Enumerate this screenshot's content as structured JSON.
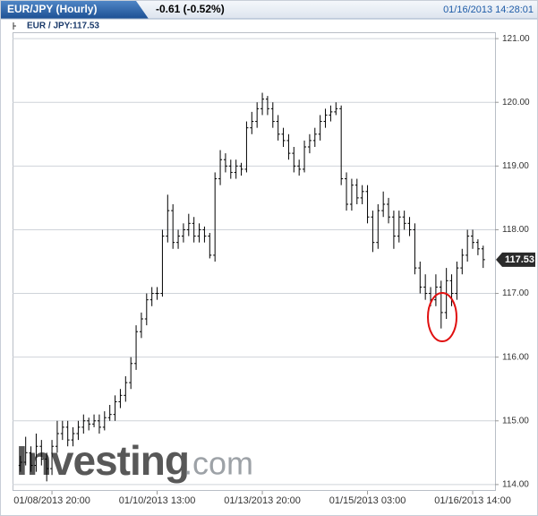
{
  "chart_data": {
    "type": "ohlc",
    "title": "EUR/JPY (Hourly)",
    "change": "-0.61 (-0.52%)",
    "timestamp": "01/16/2013 14:28:01",
    "legend_label": "EUR / JPY:117.53",
    "last_price_label": "117.53",
    "watermark": "Investing",
    "watermark_suffix": ".com",
    "color": "#000000",
    "grid": true,
    "x": [
      0,
      1,
      2,
      3,
      4,
      5,
      6,
      7,
      8,
      9,
      10,
      11,
      12,
      13,
      14,
      15,
      16,
      17,
      18,
      19,
      20,
      21,
      22,
      23,
      24,
      25,
      26,
      27,
      28,
      29,
      30,
      31,
      32,
      33,
      34,
      35,
      36,
      37,
      38,
      39,
      40,
      41,
      42,
      43,
      44,
      45,
      46,
      47,
      48,
      49,
      50,
      51,
      52,
      53,
      54,
      55,
      56,
      57,
      58,
      59,
      60,
      61,
      62,
      63,
      64,
      65,
      66,
      67,
      68,
      69,
      70,
      71,
      72,
      73,
      74,
      75,
      76,
      77,
      78,
      79,
      80,
      81,
      82,
      83,
      84,
      85,
      86,
      87,
      88
    ],
    "open": [
      114.3,
      114.35,
      114.5,
      114.3,
      114.6,
      114.4,
      114.25,
      114.6,
      114.8,
      114.9,
      114.7,
      114.8,
      114.9,
      115.0,
      114.95,
      115.0,
      114.9,
      115.05,
      115.1,
      115.3,
      115.4,
      115.6,
      115.9,
      116.4,
      116.6,
      116.9,
      117.0,
      117.0,
      117.9,
      118.3,
      117.8,
      117.9,
      118.0,
      118.1,
      117.9,
      118.0,
      117.9,
      117.6,
      118.8,
      119.1,
      119.0,
      118.9,
      119.0,
      118.95,
      119.6,
      119.7,
      119.9,
      120.05,
      119.9,
      119.7,
      119.5,
      119.4,
      119.2,
      119.0,
      118.95,
      119.3,
      119.4,
      119.5,
      119.7,
      119.8,
      119.85,
      119.9,
      118.8,
      118.4,
      118.7,
      118.5,
      118.6,
      118.2,
      117.8,
      118.3,
      118.4,
      118.2,
      117.9,
      118.2,
      118.1,
      118.0,
      117.4,
      117.1,
      117.0,
      116.9,
      117.1,
      116.7,
      117.2,
      117.0,
      117.4,
      117.6,
      117.9,
      117.8,
      117.7
    ],
    "high": [
      114.45,
      114.75,
      114.6,
      114.8,
      114.7,
      114.5,
      114.7,
      115.0,
      115.0,
      115.0,
      114.9,
      115.0,
      115.1,
      115.05,
      115.1,
      115.1,
      115.15,
      115.25,
      115.4,
      115.5,
      115.7,
      116.0,
      116.5,
      116.7,
      117.0,
      117.1,
      117.1,
      118.0,
      118.55,
      118.4,
      118.0,
      118.1,
      118.25,
      118.2,
      118.1,
      118.05,
      117.95,
      118.9,
      119.25,
      119.2,
      119.1,
      119.1,
      119.05,
      119.7,
      119.85,
      120.0,
      120.15,
      120.1,
      120.0,
      119.8,
      119.6,
      119.5,
      119.3,
      119.1,
      119.4,
      119.5,
      119.6,
      119.8,
      119.9,
      119.95,
      120.0,
      119.95,
      118.9,
      118.8,
      118.8,
      118.7,
      118.7,
      118.3,
      118.4,
      118.6,
      118.5,
      118.3,
      118.3,
      118.3,
      118.2,
      118.1,
      117.5,
      117.3,
      117.1,
      117.3,
      117.2,
      117.4,
      117.3,
      117.5,
      117.7,
      118.0,
      118.0,
      117.85,
      117.75
    ],
    "low": [
      114.2,
      114.3,
      114.2,
      114.2,
      114.3,
      114.05,
      114.15,
      114.5,
      114.7,
      114.6,
      114.6,
      114.7,
      114.8,
      114.85,
      114.9,
      114.8,
      114.85,
      115.0,
      115.0,
      115.2,
      115.3,
      115.5,
      115.8,
      116.3,
      116.5,
      116.8,
      116.9,
      116.95,
      117.8,
      117.7,
      117.7,
      117.8,
      117.9,
      117.8,
      117.8,
      117.8,
      117.55,
      117.5,
      118.7,
      118.9,
      118.8,
      118.8,
      118.85,
      118.9,
      119.5,
      119.6,
      119.8,
      119.8,
      119.6,
      119.4,
      119.3,
      119.1,
      118.9,
      118.85,
      118.9,
      119.2,
      119.3,
      119.4,
      119.6,
      119.7,
      119.8,
      118.7,
      118.3,
      118.3,
      118.4,
      118.4,
      118.1,
      117.65,
      117.7,
      118.2,
      118.1,
      117.7,
      117.8,
      118.0,
      117.9,
      117.3,
      117.0,
      116.9,
      116.8,
      116.8,
      116.45,
      116.6,
      116.8,
      116.9,
      117.3,
      117.5,
      117.7,
      117.6,
      117.4
    ],
    "close": [
      114.35,
      114.5,
      114.3,
      114.6,
      114.4,
      114.25,
      114.6,
      114.8,
      114.9,
      114.7,
      114.8,
      114.9,
      115.0,
      114.95,
      115.0,
      114.9,
      115.05,
      115.1,
      115.3,
      115.4,
      115.6,
      115.9,
      116.4,
      116.6,
      116.9,
      117.0,
      117.0,
      117.9,
      118.3,
      117.8,
      117.9,
      118.0,
      118.1,
      117.9,
      118.0,
      117.9,
      117.6,
      118.8,
      119.1,
      119.0,
      118.9,
      119.0,
      118.95,
      119.6,
      119.7,
      119.9,
      120.05,
      119.9,
      119.7,
      119.5,
      119.4,
      119.2,
      119.0,
      118.95,
      119.3,
      119.4,
      119.5,
      119.7,
      119.8,
      119.85,
      119.9,
      118.8,
      118.4,
      118.7,
      118.5,
      118.6,
      118.2,
      117.8,
      118.3,
      118.4,
      118.2,
      117.9,
      118.2,
      118.1,
      118.0,
      117.4,
      117.1,
      117.0,
      116.9,
      117.1,
      116.7,
      117.2,
      117.0,
      117.4,
      117.6,
      117.9,
      117.8,
      117.7,
      117.53
    ],
    "xlim": [
      -1.5,
      90.25
    ],
    "xticks": [
      {
        "value": 6,
        "label": "01/08/2013 20:00"
      },
      {
        "value": 26,
        "label": "01/10/2013 13:00"
      },
      {
        "value": 46,
        "label": "01/13/2013 20:00"
      },
      {
        "value": 66,
        "label": "01/15/2013 03:00"
      },
      {
        "value": 86,
        "label": "01/16/2013 14:00"
      }
    ],
    "ylim": [
      113.9,
      121.1
    ],
    "yticks": [
      {
        "value": 114,
        "label": "114.00"
      },
      {
        "value": 115,
        "label": "115.00"
      },
      {
        "value": 116,
        "label": "116.00"
      },
      {
        "value": 117,
        "label": "117.00"
      },
      {
        "value": 118,
        "label": "118.00"
      },
      {
        "value": 119,
        "label": "119.00"
      },
      {
        "value": 120,
        "label": "120.00"
      },
      {
        "value": 121,
        "label": "121.00"
      }
    ]
  }
}
